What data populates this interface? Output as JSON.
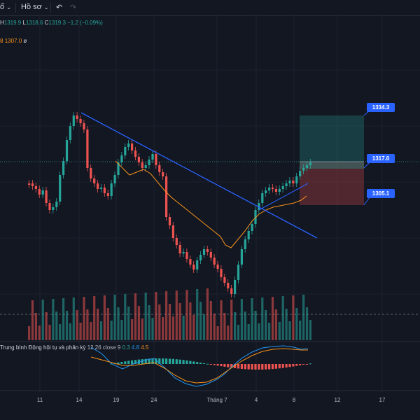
{
  "toolbar": {
    "dropdown_left": "ổ",
    "template_label": "Hồ sơ",
    "undo_icon": "undo-icon",
    "redo_icon": "redo-icon"
  },
  "ohlc": {
    "h_label": "H",
    "h_value": "1319.9",
    "l_label": "L",
    "l_value": "1318.6",
    "c_label": "C",
    "c_value": "1319.3",
    "change": "−1.2 (−0.09%)"
  },
  "ma_legend": {
    "prefix": "8",
    "value": "1307.0",
    "suffix": "ø",
    "color": "#f7931a"
  },
  "macd_legend": {
    "name": "Trung bình Động hội tụ và phân kỳ",
    "params": "12 26 close 9",
    "v1": "0.3",
    "v2": "4.8",
    "v3": "4.5",
    "c1": "#26a69a",
    "c2": "#2196f3",
    "c3": "#f7931a"
  },
  "price_tags": {
    "take_profit": "1334.3",
    "entry": "1317.0",
    "stop_loss": "1305.1"
  },
  "x_axis": [
    "11",
    "14",
    "19",
    "24",
    "Tháng 7",
    "4",
    "8",
    "12",
    "17"
  ],
  "colors": {
    "up": "#26a69a",
    "down": "#ef5350",
    "trendline": "#2962ff",
    "ma": "#f7931a",
    "background": "#131722"
  }
}
